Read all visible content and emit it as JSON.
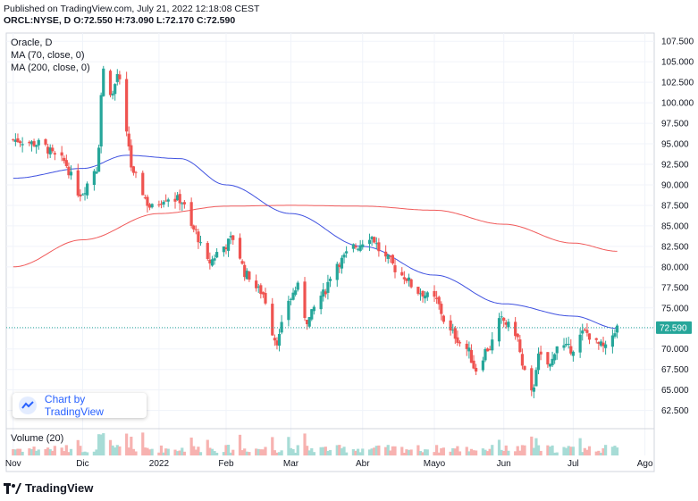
{
  "header": {
    "published": "Published on TradingView.com, July 21, 2022 12:18:08 CEST",
    "symbol": "ORCL:NYSE, D",
    "open": "O:72.550",
    "high": "H:73.090",
    "low": "L:72.170",
    "close": "C:72.590"
  },
  "legend": {
    "title": "Oracle, D",
    "ma70": "MA (70, close, 0)",
    "ma200": "MA (200, close, 0)",
    "volume": "Volume (20)"
  },
  "badge": {
    "label": "Chart by TradingView",
    "icon": "cloud-icon"
  },
  "brand": {
    "label": "TradingView",
    "icon": "tv-logo-icon"
  },
  "colors": {
    "up": "#26a69a",
    "down": "#ef5350",
    "ma70": "#3f51e0",
    "ma200": "#f05a5a",
    "price_line": "#26a69a",
    "vol_up": "#a7dcd6",
    "vol_down": "#f7b2b0"
  },
  "chart_data": {
    "type": "candlestick",
    "title": "Oracle, D",
    "last_price_label": "72.590",
    "last_price": 72.59,
    "ylim": [
      60.5,
      108.5
    ],
    "yticks": [
      62.5,
      65.0,
      67.5,
      70.0,
      72.5,
      75.0,
      77.5,
      80.0,
      82.5,
      85.0,
      87.5,
      90.0,
      92.5,
      95.0,
      97.5,
      100.0,
      102.5,
      105.0,
      107.5
    ],
    "ytick_labels": [
      "62.500",
      "65.000",
      "67.500",
      "70.000",
      "72.500",
      "75.000",
      "77.500",
      "80.000",
      "82.500",
      "85.000",
      "87.500",
      "90.000",
      "92.500",
      "95.000",
      "97.500",
      "100.000",
      "102.500",
      "105.000",
      "107.500"
    ],
    "xticks": [
      {
        "label": "Nov",
        "date": "2021-11-01"
      },
      {
        "label": "Dic",
        "date": "2021-12-01"
      },
      {
        "label": "2022",
        "date": "2022-01-03"
      },
      {
        "label": "Feb",
        "date": "2022-02-01"
      },
      {
        "label": "Mar",
        "date": "2022-03-01"
      },
      {
        "label": "Abr",
        "date": "2022-04-01"
      },
      {
        "label": "Mayo",
        "date": "2022-05-02"
      },
      {
        "label": "Jun",
        "date": "2022-06-01"
      },
      {
        "label": "Jul",
        "date": "2022-07-01"
      },
      {
        "label": "Ago",
        "date": "2022-08-01"
      }
    ],
    "close_keypoints": [
      {
        "date": "2021-11-01",
        "close": 95.5
      },
      {
        "date": "2021-11-12",
        "close": 95.0
      },
      {
        "date": "2021-11-22",
        "close": 93.0
      },
      {
        "date": "2021-11-30",
        "close": 89.0
      },
      {
        "date": "2021-12-07",
        "close": 92.0
      },
      {
        "date": "2021-12-10",
        "close": 104.0
      },
      {
        "date": "2021-12-14",
        "close": 101.0
      },
      {
        "date": "2021-12-16",
        "close": 103.5
      },
      {
        "date": "2021-12-20",
        "close": 96.0
      },
      {
        "date": "2021-12-23",
        "close": 91.0
      },
      {
        "date": "2021-12-31",
        "close": 87.2
      },
      {
        "date": "2022-01-06",
        "close": 88.5
      },
      {
        "date": "2022-01-12",
        "close": 88.2
      },
      {
        "date": "2022-01-18",
        "close": 84.5
      },
      {
        "date": "2022-01-24",
        "close": 80.5
      },
      {
        "date": "2022-01-31",
        "close": 82.5
      },
      {
        "date": "2022-02-04",
        "close": 83.5
      },
      {
        "date": "2022-02-10",
        "close": 79.0
      },
      {
        "date": "2022-02-16",
        "close": 77.0
      },
      {
        "date": "2022-02-23",
        "close": 71.0
      },
      {
        "date": "2022-02-28",
        "close": 76.0
      },
      {
        "date": "2022-03-04",
        "close": 77.5
      },
      {
        "date": "2022-03-08",
        "close": 73.5
      },
      {
        "date": "2022-03-14",
        "close": 76.5
      },
      {
        "date": "2022-03-21",
        "close": 80.5
      },
      {
        "date": "2022-03-29",
        "close": 82.5
      },
      {
        "date": "2022-04-04",
        "close": 83.8
      },
      {
        "date": "2022-04-11",
        "close": 81.0
      },
      {
        "date": "2022-04-18",
        "close": 79.0
      },
      {
        "date": "2022-04-25",
        "close": 77.0
      },
      {
        "date": "2022-05-02",
        "close": 76.0
      },
      {
        "date": "2022-05-09",
        "close": 72.0
      },
      {
        "date": "2022-05-16",
        "close": 70.0
      },
      {
        "date": "2022-05-20",
        "close": 67.5
      },
      {
        "date": "2022-05-25",
        "close": 70.0
      },
      {
        "date": "2022-05-31",
        "close": 73.5
      },
      {
        "date": "2022-06-06",
        "close": 72.0
      },
      {
        "date": "2022-06-10",
        "close": 67.0
      },
      {
        "date": "2022-06-13",
        "close": 64.5
      },
      {
        "date": "2022-06-16",
        "close": 69.0
      },
      {
        "date": "2022-06-21",
        "close": 68.0
      },
      {
        "date": "2022-06-24",
        "close": 70.5
      },
      {
        "date": "2022-06-30",
        "close": 70.0
      },
      {
        "date": "2022-07-06",
        "close": 72.0
      },
      {
        "date": "2022-07-12",
        "close": 70.5
      },
      {
        "date": "2022-07-15",
        "close": 70.0
      },
      {
        "date": "2022-07-20",
        "close": 72.59
      }
    ],
    "ma70_keypoints": [
      {
        "date": "2021-11-01",
        "value": 90.8
      },
      {
        "date": "2021-12-01",
        "value": 92.0
      },
      {
        "date": "2021-12-20",
        "value": 93.6
      },
      {
        "date": "2022-01-12",
        "value": 93.2
      },
      {
        "date": "2022-02-01",
        "value": 90.0
      },
      {
        "date": "2022-03-01",
        "value": 86.5
      },
      {
        "date": "2022-04-01",
        "value": 82.5
      },
      {
        "date": "2022-05-02",
        "value": 79.0
      },
      {
        "date": "2022-06-01",
        "value": 75.5
      },
      {
        "date": "2022-07-01",
        "value": 74.0
      },
      {
        "date": "2022-07-20",
        "value": 72.5
      }
    ],
    "ma200_keypoints": [
      {
        "date": "2021-11-01",
        "value": 80.0
      },
      {
        "date": "2021-12-01",
        "value": 83.3
      },
      {
        "date": "2022-01-03",
        "value": 86.5
      },
      {
        "date": "2022-02-01",
        "value": 87.4
      },
      {
        "date": "2022-03-01",
        "value": 87.5
      },
      {
        "date": "2022-04-01",
        "value": 87.4
      },
      {
        "date": "2022-05-02",
        "value": 86.9
      },
      {
        "date": "2022-06-01",
        "value": 85.2
      },
      {
        "date": "2022-07-01",
        "value": 82.9
      },
      {
        "date": "2022-07-20",
        "value": 81.9
      }
    ],
    "grid": true,
    "legend_position": "top-left"
  }
}
